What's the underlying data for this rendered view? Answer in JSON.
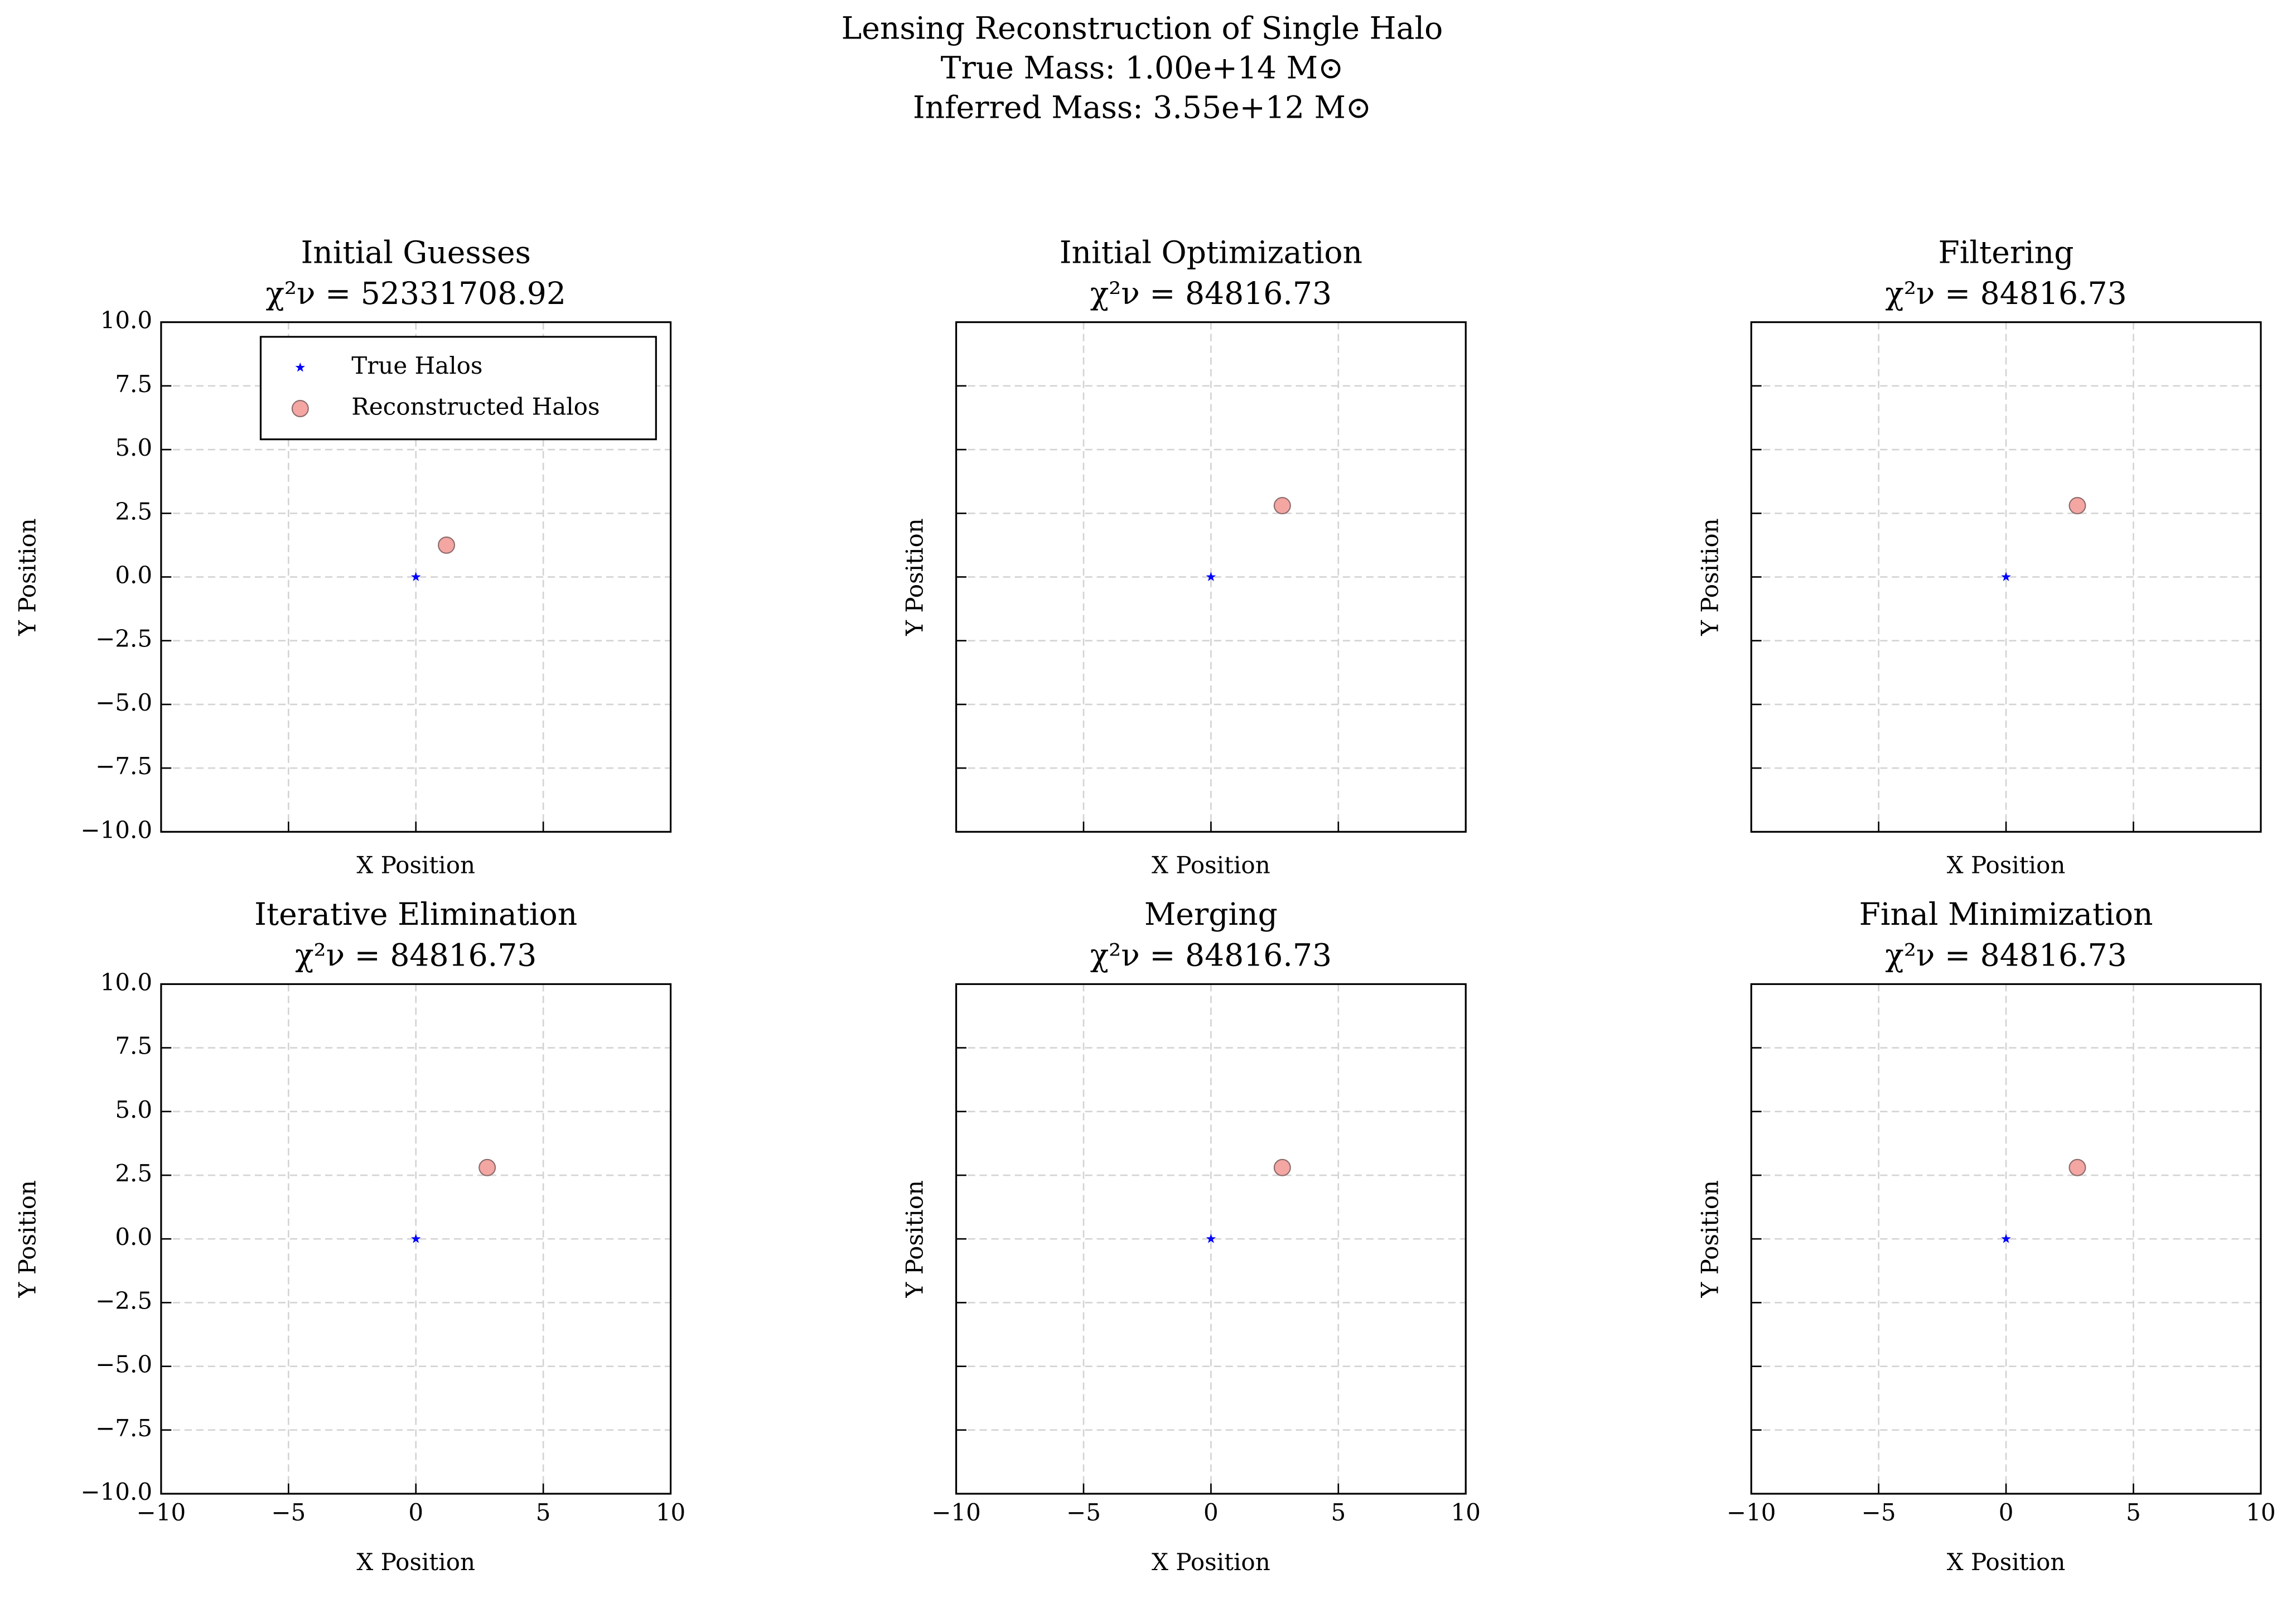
{
  "title": "Lensing Reconstruction of Single Halo",
  "subtitle": [
    "True Mass: 1.00e+14 M⊙",
    "Inferred Mass: 3.55e+12 M⊙"
  ],
  "chart_data": [
    {
      "type": "scatter",
      "title": "Initial Guesses",
      "subtitle": "χ²ν = 52331708.92",
      "xlabel": "X Position",
      "ylabel": "Y Position",
      "xlim": [
        -10,
        10
      ],
      "ylim": [
        -10,
        10
      ],
      "xticks": [
        {
          "value": -10,
          "label": "−10"
        },
        {
          "value": -5,
          "label": "−5"
        },
        0,
        5,
        10
      ],
      "yticks": [
        {
          "value": -10,
          "label": "−10.0"
        },
        {
          "value": -7.5,
          "label": "−7.5"
        },
        {
          "value": -5,
          "label": "−5.0"
        },
        {
          "value": -2.5,
          "label": "−2.5"
        },
        {
          "value": 0,
          "label": "0.0"
        },
        2.5,
        {
          "value": 5,
          "label": "5.0"
        },
        7.5,
        {
          "value": 10,
          "label": "10.0"
        }
      ],
      "xticklabels": false,
      "yticklabels": true,
      "grid": true,
      "legend": "upper right",
      "series": [
        {
          "name": "True Halos",
          "color": "#0000ff",
          "marker": "star",
          "x": [
            0
          ],
          "y": [
            0
          ]
        },
        {
          "name": "Reconstructed Halos",
          "color": "#f4a6a2",
          "marker": "circle",
          "x": [
            1.2
          ],
          "y": [
            1.25
          ]
        }
      ]
    },
    {
      "type": "scatter",
      "title": "Initial Optimization",
      "subtitle": "χ²ν = 84816.73",
      "xlabel": "X Position",
      "ylabel": "Y Position",
      "xlim": [
        -10,
        10
      ],
      "ylim": [
        -10,
        10
      ],
      "xticks": [
        -10,
        -5,
        0,
        5,
        10
      ],
      "yticks": [
        -10,
        -7.5,
        -5,
        -2.5,
        0,
        2.5,
        5,
        7.5,
        10
      ],
      "xticklabels": false,
      "yticklabels": false,
      "grid": true,
      "series": [
        {
          "color": "#0000ff",
          "marker": "star",
          "x": [
            0
          ],
          "y": [
            0
          ]
        },
        {
          "color": "#f4a6a2",
          "marker": "circle",
          "x": [
            2.8
          ],
          "y": [
            2.8
          ]
        }
      ]
    },
    {
      "type": "scatter",
      "title": "Filtering",
      "subtitle": "χ²ν = 84816.73",
      "xlabel": "X Position",
      "ylabel": "Y Position",
      "xlim": [
        -10,
        10
      ],
      "ylim": [
        -10,
        10
      ],
      "xticks": [
        -10,
        -5,
        0,
        5,
        10
      ],
      "yticks": [
        -10,
        -7.5,
        -5,
        -2.5,
        0,
        2.5,
        5,
        7.5,
        10
      ],
      "xticklabels": false,
      "yticklabels": false,
      "grid": true,
      "series": [
        {
          "color": "#0000ff",
          "marker": "star",
          "x": [
            0
          ],
          "y": [
            0
          ]
        },
        {
          "color": "#f4a6a2",
          "marker": "circle",
          "x": [
            2.8
          ],
          "y": [
            2.8
          ]
        }
      ]
    },
    {
      "type": "scatter",
      "title": "Iterative Elimination",
      "subtitle": "χ²ν = 84816.73",
      "xlabel": "X Position",
      "ylabel": "Y Position",
      "xlim": [
        -10,
        10
      ],
      "ylim": [
        -10,
        10
      ],
      "xticks": [
        {
          "value": -10,
          "label": "−10"
        },
        {
          "value": -5,
          "label": "−5"
        },
        0,
        5,
        10
      ],
      "yticks": [
        {
          "value": -10,
          "label": "−10.0"
        },
        {
          "value": -7.5,
          "label": "−7.5"
        },
        {
          "value": -5,
          "label": "−5.0"
        },
        {
          "value": -2.5,
          "label": "−2.5"
        },
        {
          "value": 0,
          "label": "0.0"
        },
        2.5,
        {
          "value": 5,
          "label": "5.0"
        },
        7.5,
        {
          "value": 10,
          "label": "10.0"
        }
      ],
      "xticklabels": true,
      "yticklabels": true,
      "grid": true,
      "series": [
        {
          "color": "#0000ff",
          "marker": "star",
          "x": [
            0
          ],
          "y": [
            0
          ]
        },
        {
          "color": "#f4a6a2",
          "marker": "circle",
          "x": [
            2.8
          ],
          "y": [
            2.8
          ]
        }
      ]
    },
    {
      "type": "scatter",
      "title": "Merging",
      "subtitle": "χ²ν = 84816.73",
      "xlabel": "X Position",
      "ylabel": "Y Position",
      "xlim": [
        -10,
        10
      ],
      "ylim": [
        -10,
        10
      ],
      "xticks": [
        {
          "value": -10,
          "label": "−10"
        },
        {
          "value": -5,
          "label": "−5"
        },
        0,
        5,
        10
      ],
      "yticks": [
        -10,
        -7.5,
        -5,
        -2.5,
        0,
        2.5,
        5,
        7.5,
        10
      ],
      "xticklabels": true,
      "yticklabels": false,
      "grid": true,
      "series": [
        {
          "color": "#0000ff",
          "marker": "star",
          "x": [
            0
          ],
          "y": [
            0
          ]
        },
        {
          "color": "#f4a6a2",
          "marker": "circle",
          "x": [
            2.8
          ],
          "y": [
            2.8
          ]
        }
      ]
    },
    {
      "type": "scatter",
      "title": "Final Minimization",
      "subtitle": "χ²ν = 84816.73",
      "xlabel": "X Position",
      "ylabel": "Y Position",
      "xlim": [
        -10,
        10
      ],
      "ylim": [
        -10,
        10
      ],
      "xticks": [
        {
          "value": -10,
          "label": "−10"
        },
        {
          "value": -5,
          "label": "−5"
        },
        0,
        5,
        10
      ],
      "yticks": [
        -10,
        -7.5,
        -5,
        -2.5,
        0,
        2.5,
        5,
        7.5,
        10
      ],
      "xticklabels": true,
      "yticklabels": false,
      "grid": true,
      "series": [
        {
          "color": "#0000ff",
          "marker": "star",
          "x": [
            0
          ],
          "y": [
            0
          ]
        },
        {
          "color": "#f4a6a2",
          "marker": "circle",
          "x": [
            2.8
          ],
          "y": [
            2.8
          ]
        }
      ]
    }
  ]
}
